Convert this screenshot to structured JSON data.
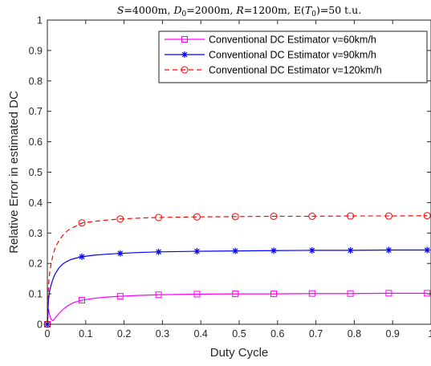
{
  "chart_data": {
    "type": "line",
    "title": "S=4000m, D0=2000m, R=1200m, E(T0)=50 t.u.",
    "title_parts": {
      "s_var": "S",
      "s_val": "=4000m, ",
      "d_var": "D",
      "d_sub": "0",
      "d_val": "=2000m, ",
      "r_var": "R",
      "r_val": "=1200m, E(",
      "t_var": "T",
      "t_sub": "0",
      "t_val": ")=50 t.u."
    },
    "xlabel": "Duty Cycle",
    "ylabel": "Relative Error in estimated DC",
    "xlim": [
      0,
      1
    ],
    "ylim": [
      0,
      1
    ],
    "x_ticks": [
      "0",
      "0.1",
      "0.2",
      "0.3",
      "0.4",
      "0.5",
      "0.6",
      "0.7",
      "0.8",
      "0.9",
      "1"
    ],
    "y_ticks": [
      "0",
      "0.1",
      "0.2",
      "0.3",
      "0.4",
      "0.5",
      "0.6",
      "0.7",
      "0.8",
      "0.9",
      "1"
    ],
    "grid": false,
    "legend_position": "top-right",
    "series": [
      {
        "name": "Conventional DC Estimator v=60km/h",
        "color": "#ff00ff",
        "line_style": "solid",
        "marker": "square",
        "x": [
          0,
          0.003,
          0.006,
          0.01,
          0.015,
          0.02,
          0.03,
          0.04,
          0.05,
          0.06,
          0.07,
          0.09,
          0.12,
          0.15,
          0.19,
          0.24,
          0.29,
          0.39,
          0.49,
          0.59,
          0.69,
          0.79,
          0.89,
          0.99
        ],
        "y": [
          0,
          0.05,
          0.03,
          0.015,
          0.012,
          0.02,
          0.035,
          0.048,
          0.058,
          0.066,
          0.072,
          0.079,
          0.085,
          0.089,
          0.092,
          0.095,
          0.097,
          0.099,
          0.1,
          0.1,
          0.101,
          0.101,
          0.102,
          0.102
        ],
        "marker_x": [
          0,
          0.09,
          0.19,
          0.29,
          0.39,
          0.49,
          0.59,
          0.69,
          0.79,
          0.89,
          0.99
        ],
        "marker_y": [
          0,
          0.079,
          0.092,
          0.097,
          0.099,
          0.1,
          0.1,
          0.101,
          0.101,
          0.102,
          0.102
        ]
      },
      {
        "name": "Conventional DC Estimator v=90km/h",
        "color": "#0000ff",
        "line_style": "solid",
        "marker": "asterisk",
        "x": [
          0,
          0.003,
          0.006,
          0.01,
          0.015,
          0.02,
          0.03,
          0.04,
          0.05,
          0.06,
          0.07,
          0.09,
          0.12,
          0.15,
          0.19,
          0.24,
          0.29,
          0.39,
          0.49,
          0.59,
          0.69,
          0.79,
          0.89,
          0.99
        ],
        "y": [
          0,
          0.08,
          0.11,
          0.13,
          0.15,
          0.165,
          0.185,
          0.198,
          0.206,
          0.212,
          0.216,
          0.222,
          0.227,
          0.23,
          0.233,
          0.236,
          0.238,
          0.24,
          0.241,
          0.242,
          0.243,
          0.243,
          0.244,
          0.244
        ],
        "marker_x": [
          0,
          0.09,
          0.19,
          0.29,
          0.39,
          0.49,
          0.59,
          0.69,
          0.79,
          0.89,
          0.99
        ],
        "marker_y": [
          0,
          0.222,
          0.233,
          0.238,
          0.24,
          0.241,
          0.242,
          0.243,
          0.243,
          0.244,
          0.244
        ]
      },
      {
        "name": "Conventional DC Estimator v=120km/h",
        "color": "#ff0000",
        "line_style": "dashed",
        "marker": "circle",
        "x": [
          0,
          0.003,
          0.006,
          0.01,
          0.015,
          0.02,
          0.03,
          0.04,
          0.05,
          0.06,
          0.07,
          0.09,
          0.12,
          0.15,
          0.19,
          0.24,
          0.29,
          0.39,
          0.49,
          0.59,
          0.69,
          0.79,
          0.89,
          0.99
        ],
        "y": [
          0,
          0.13,
          0.17,
          0.2,
          0.23,
          0.25,
          0.275,
          0.292,
          0.305,
          0.314,
          0.32,
          0.333,
          0.338,
          0.342,
          0.346,
          0.349,
          0.351,
          0.353,
          0.354,
          0.355,
          0.355,
          0.356,
          0.356,
          0.357
        ],
        "marker_x": [
          0,
          0.09,
          0.19,
          0.29,
          0.39,
          0.49,
          0.59,
          0.69,
          0.79,
          0.89,
          0.99
        ],
        "marker_y": [
          0,
          0.333,
          0.346,
          0.351,
          0.353,
          0.354,
          0.355,
          0.355,
          0.356,
          0.356,
          0.357
        ]
      }
    ]
  }
}
